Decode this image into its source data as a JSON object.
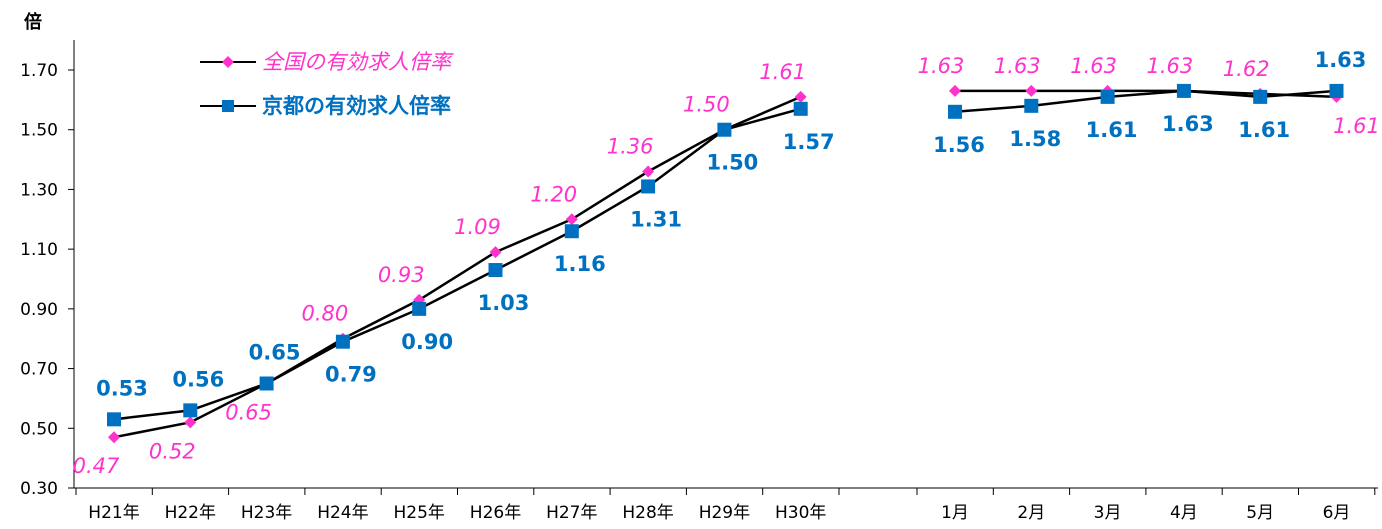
{
  "colors": {
    "national": "#ff33cc",
    "kyoto": "#0070c0",
    "line": "#000000"
  },
  "chart_data": {
    "type": "line",
    "y_unit": "倍",
    "ylim": [
      0.3,
      1.7
    ],
    "y_ticks": [
      "0.30",
      "0.50",
      "0.70",
      "0.90",
      "1.10",
      "1.30",
      "1.50",
      "1.70"
    ],
    "grid": false,
    "legend_position": "top-left",
    "categories": [
      "H21年",
      "H22年",
      "H23年",
      "H24年",
      "H25年",
      "H26年",
      "H27年",
      "H28年",
      "H29年",
      "H30年",
      "1月",
      "2月",
      "3月",
      "4月",
      "5月",
      "6月"
    ],
    "series": [
      {
        "name": "全国の有効求人倍率",
        "marker": "diamond",
        "values": [
          0.47,
          0.52,
          0.65,
          0.8,
          0.93,
          1.09,
          1.2,
          1.36,
          1.5,
          1.61,
          1.63,
          1.63,
          1.63,
          1.63,
          1.62,
          1.61
        ],
        "labels": [
          "0.47",
          "0.52",
          "0.65",
          "0.80",
          "0.93",
          "1.09",
          "1.20",
          "1.36",
          "1.50",
          "1.61",
          "1.63",
          "1.63",
          "1.63",
          "1.63",
          "1.62",
          "1.61"
        ]
      },
      {
        "name": "京都の有効求人倍率",
        "marker": "square",
        "values": [
          0.53,
          0.56,
          0.65,
          0.79,
          0.9,
          1.03,
          1.16,
          1.31,
          1.5,
          1.57,
          1.56,
          1.58,
          1.61,
          1.63,
          1.61,
          1.63
        ],
        "labels": [
          "0.53",
          "0.56",
          "0.65",
          "0.79",
          "0.90",
          "1.03",
          "1.16",
          "1.31",
          "1.50",
          "1.57",
          "1.56",
          "1.58",
          "1.61",
          "1.63",
          "1.61",
          "1.63"
        ]
      }
    ]
  }
}
